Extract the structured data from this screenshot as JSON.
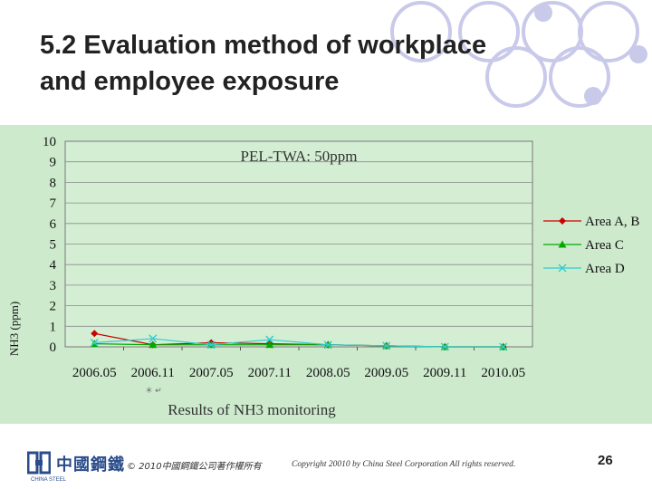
{
  "slide": {
    "title_line1": "5.2 Evaluation method of workplace",
    "title_line2": "and employee exposure",
    "page_number": "26",
    "copyright_cn": "© 2010中國鋼鐵公司著作權所有",
    "copyright_en": "Copyright 20010 by China Steel Corporation All rights reserved.",
    "logo_text": "中國鋼鐵",
    "logo_sub": "CHINA STEEL",
    "colors": {
      "chart_bg": "#cdeacd",
      "circle": "#c9c9ea",
      "area_ab": "#cc0000",
      "area_c": "#00aa00",
      "area_d": "#33cccc"
    }
  },
  "chart_data": {
    "type": "line",
    "title": "PEL-TWA: 50ppm",
    "caption": "Results of NH3 monitoring",
    "xlabel": "",
    "ylabel": "NH3 (ppm)",
    "ylim": [
      0,
      10
    ],
    "yticks": [
      "0",
      "1",
      "2",
      "3",
      "4",
      "5",
      "6",
      "7",
      "8",
      "9",
      "10"
    ],
    "categories": [
      "2006.05",
      "2006.11",
      "2007.05",
      "2007.11",
      "2008.05",
      "2009.05",
      "2009.11",
      "2010.05"
    ],
    "grid": "horizontal",
    "legend_position": "right",
    "series": [
      {
        "name": "Area A, B",
        "marker": "diamond",
        "color": "#cc0000",
        "values": [
          0.65,
          0.1,
          0.2,
          0.15,
          0.1,
          0.05,
          0.0,
          0.0
        ]
      },
      {
        "name": "Area C",
        "marker": "triangle",
        "color": "#00aa00",
        "values": [
          0.15,
          0.1,
          0.1,
          0.1,
          0.1,
          0.05,
          0.0,
          0.0
        ]
      },
      {
        "name": "Area D",
        "marker": "x",
        "color": "#33cccc",
        "values": [
          0.2,
          0.4,
          0.1,
          0.35,
          0.1,
          0.05,
          0.0,
          0.0
        ]
      }
    ]
  }
}
